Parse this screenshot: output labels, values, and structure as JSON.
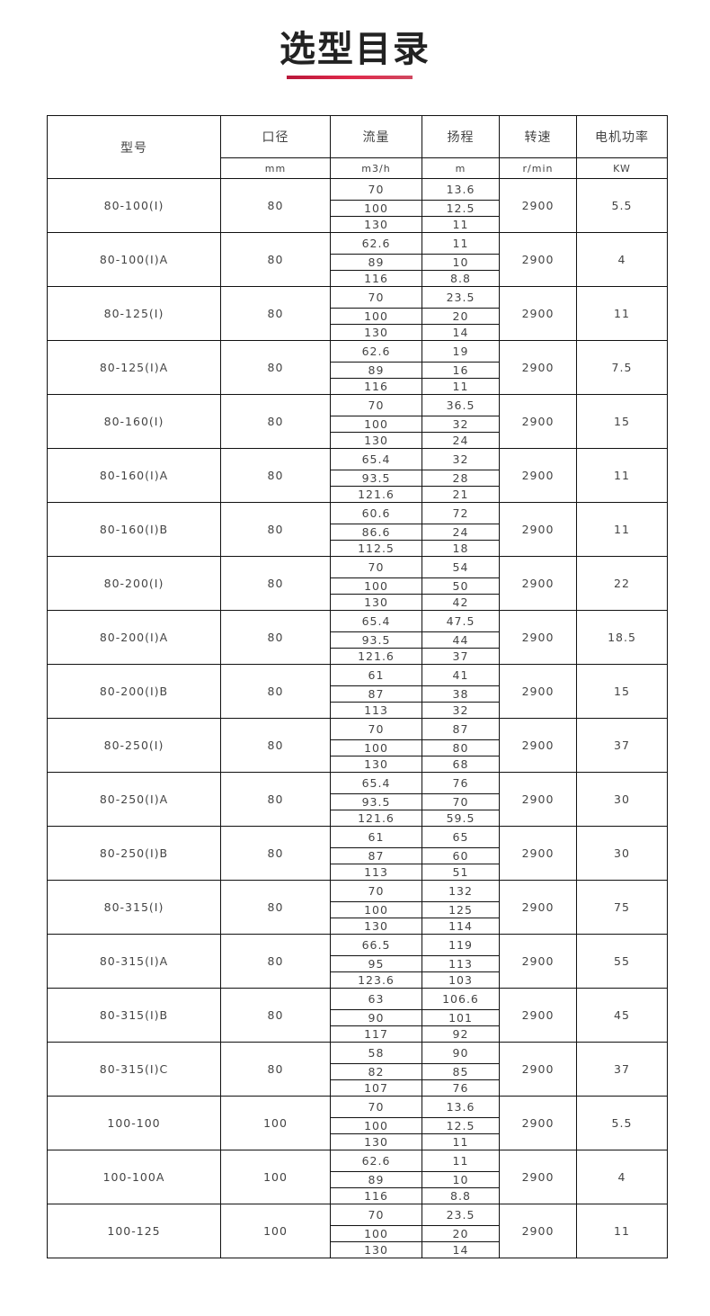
{
  "title": "选型目录",
  "headers": [
    "型号",
    "口径",
    "流量",
    "扬程",
    "转速",
    "电机功率"
  ],
  "units": [
    "mm",
    "m3/h",
    "m",
    "r/min",
    "KW"
  ],
  "rows": [
    {
      "model": "80-100(I)",
      "caliber": "80",
      "flow": [
        "70",
        "100",
        "130"
      ],
      "head": [
        "13.6",
        "12.5",
        "11"
      ],
      "speed": "2900",
      "power": "5.5"
    },
    {
      "model": "80-100(I)A",
      "caliber": "80",
      "flow": [
        "62.6",
        "89",
        "116"
      ],
      "head": [
        "11",
        "10",
        "8.8"
      ],
      "speed": "2900",
      "power": "4"
    },
    {
      "model": "80-125(I)",
      "caliber": "80",
      "flow": [
        "70",
        "100",
        "130"
      ],
      "head": [
        "23.5",
        "20",
        "14"
      ],
      "speed": "2900",
      "power": "11"
    },
    {
      "model": "80-125(I)A",
      "caliber": "80",
      "flow": [
        "62.6",
        "89",
        "116"
      ],
      "head": [
        "19",
        "16",
        "11"
      ],
      "speed": "2900",
      "power": "7.5"
    },
    {
      "model": "80-160(I)",
      "caliber": "80",
      "flow": [
        "70",
        "100",
        "130"
      ],
      "head": [
        "36.5",
        "32",
        "24"
      ],
      "speed": "2900",
      "power": "15"
    },
    {
      "model": "80-160(I)A",
      "caliber": "80",
      "flow": [
        "65.4",
        "93.5",
        "121.6"
      ],
      "head": [
        "32",
        "28",
        "21"
      ],
      "speed": "2900",
      "power": "11"
    },
    {
      "model": "80-160(I)B",
      "caliber": "80",
      "flow": [
        "60.6",
        "86.6",
        "112.5"
      ],
      "head": [
        "72",
        "24",
        "18"
      ],
      "speed": "2900",
      "power": "11"
    },
    {
      "model": "80-200(I)",
      "caliber": "80",
      "flow": [
        "70",
        "100",
        "130"
      ],
      "head": [
        "54",
        "50",
        "42"
      ],
      "speed": "2900",
      "power": "22"
    },
    {
      "model": "80-200(I)A",
      "caliber": "80",
      "flow": [
        "65.4",
        "93.5",
        "121.6"
      ],
      "head": [
        "47.5",
        "44",
        "37"
      ],
      "speed": "2900",
      "power": "18.5"
    },
    {
      "model": "80-200(I)B",
      "caliber": "80",
      "flow": [
        "61",
        "87",
        "113"
      ],
      "head": [
        "41",
        "38",
        "32"
      ],
      "speed": "2900",
      "power": "15"
    },
    {
      "model": "80-250(I)",
      "caliber": "80",
      "flow": [
        "70",
        "100",
        "130"
      ],
      "head": [
        "87",
        "80",
        "68"
      ],
      "speed": "2900",
      "power": "37"
    },
    {
      "model": "80-250(I)A",
      "caliber": "80",
      "flow": [
        "65.4",
        "93.5",
        "121.6"
      ],
      "head": [
        "76",
        "70",
        "59.5"
      ],
      "speed": "2900",
      "power": "30"
    },
    {
      "model": "80-250(I)B",
      "caliber": "80",
      "flow": [
        "61",
        "87",
        "113"
      ],
      "head": [
        "65",
        "60",
        "51"
      ],
      "speed": "2900",
      "power": "30"
    },
    {
      "model": "80-315(I)",
      "caliber": "80",
      "flow": [
        "70",
        "100",
        "130"
      ],
      "head": [
        "132",
        "125",
        "114"
      ],
      "speed": "2900",
      "power": "75"
    },
    {
      "model": "80-315(I)A",
      "caliber": "80",
      "flow": [
        "66.5",
        "95",
        "123.6"
      ],
      "head": [
        "119",
        "113",
        "103"
      ],
      "speed": "2900",
      "power": "55"
    },
    {
      "model": "80-315(I)B",
      "caliber": "80",
      "flow": [
        "63",
        "90",
        "117"
      ],
      "head": [
        "106.6",
        "101",
        "92"
      ],
      "speed": "2900",
      "power": "45"
    },
    {
      "model": "80-315(I)C",
      "caliber": "80",
      "flow": [
        "58",
        "82",
        "107"
      ],
      "head": [
        "90",
        "85",
        "76"
      ],
      "speed": "2900",
      "power": "37"
    },
    {
      "model": "100-100",
      "caliber": "100",
      "flow": [
        "70",
        "100",
        "130"
      ],
      "head": [
        "13.6",
        "12.5",
        "11"
      ],
      "speed": "2900",
      "power": "5.5"
    },
    {
      "model": "100-100A",
      "caliber": "100",
      "flow": [
        "62.6",
        "89",
        "116"
      ],
      "head": [
        "11",
        "10",
        "8.8"
      ],
      "speed": "2900",
      "power": "4"
    },
    {
      "model": "100-125",
      "caliber": "100",
      "flow": [
        "70",
        "100",
        "130"
      ],
      "head": [
        "23.5",
        "20",
        "14"
      ],
      "speed": "2900",
      "power": "11"
    }
  ]
}
